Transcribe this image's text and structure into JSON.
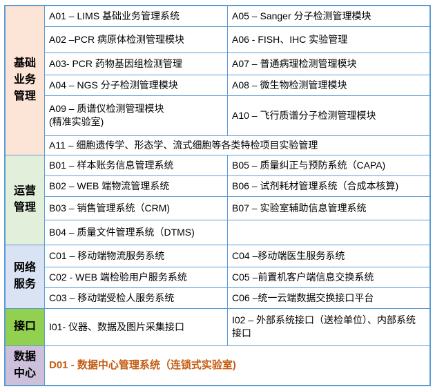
{
  "sections": [
    {
      "label": "基础业务管理",
      "rows": [
        {
          "left": "A01 – LIMS 基础业务管理系统",
          "right": "A05 – Sanger 分子检测管理模块"
        },
        {
          "left": "A02 –PCR 病原体检测管理模块",
          "right": "A06 - FISH、IHC 实验管理"
        },
        {
          "left": "A03- PCR 药物基因组检测管理",
          "right": "A07 – 普通病理检测管理模块"
        },
        {
          "left": "A04 – NGS 分子检测管理模块",
          "right": "A08 – 微生物检测管理模块"
        },
        {
          "left": [
            "A09 – 质谱仪检测管理模块",
            "(精准实验室)"
          ],
          "right": "A10 – 飞行质谱分子检测管理模块"
        },
        {
          "wide": "A11 – 细胞遗传学、形态学、流式细胞等各类特检项目实验管理"
        }
      ]
    },
    {
      "label": "运营管理",
      "rows": [
        {
          "left": "B01 – 样本账务信息管理系统",
          "right": "B05 – 质量纠正与预防系统（CAPA)"
        },
        {
          "left": "B02 – WEB 端物流管理系统",
          "right": "B06 – 试剂耗材管理系统（合成本核算)"
        },
        {
          "left": "B03 – 销售管理系统（CRM)",
          "right": "B07 – 实验室辅助信息管理系统"
        },
        {
          "left": "B04 – 质量文件管理系统（DTMS)"
        }
      ]
    },
    {
      "label": "网络服务",
      "rows": [
        {
          "left": "C01 – 移动端物流服务系统",
          "right": "C04 –移动端医生服务系统"
        },
        {
          "left": "C02 - WEB 端检验用户服务系统",
          "right": "C05 –前置机客户端信息交换系统"
        },
        {
          "left": "C03 – 移动端受检人服务系统",
          "right": "C06 –统一云端数据交换接口平台"
        }
      ]
    },
    {
      "label": "接口",
      "rows": [
        {
          "left": "I01- 仪器、数据及图片采集接口",
          "right": "I02 – 外部系统接口（送检单位）、内部系统接口"
        }
      ]
    },
    {
      "label": "数据中心",
      "rows": [
        {
          "wide": "D01 - 数据中心管理系统（连锁式实验室)"
        }
      ]
    }
  ]
}
